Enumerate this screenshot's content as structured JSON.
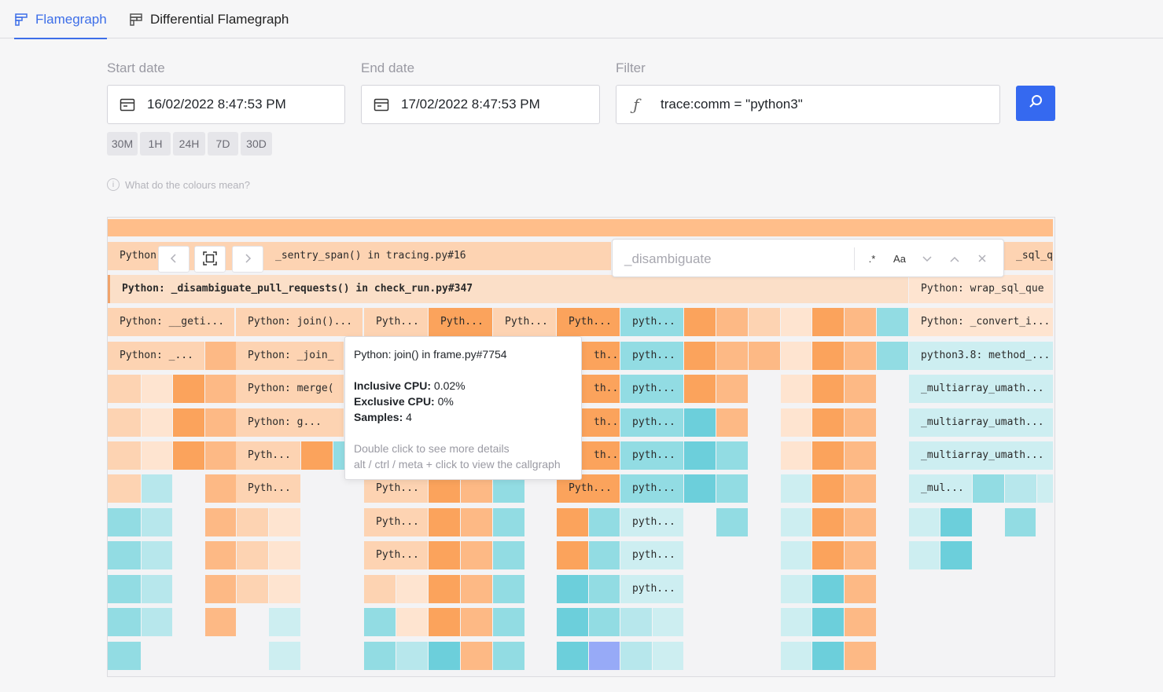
{
  "tabs": [
    {
      "label": "Flamegraph",
      "active": true,
      "icon": "flamegraph-icon"
    },
    {
      "label": "Differential Flamegraph",
      "active": false,
      "icon": "differential-flamegraph-icon"
    }
  ],
  "form": {
    "start_label": "Start date",
    "start_value": "16/02/2022 8:47:53 PM",
    "end_label": "End date",
    "end_value": "17/02/2022 8:47:53 PM",
    "filter_label": "Filter",
    "filter_value": "trace:comm = \"python3\"",
    "quick_ranges": [
      "30M",
      "1H",
      "24H",
      "7D",
      "30D"
    ],
    "help_text": "What do the colours mean?"
  },
  "flamegraph": {
    "search_placeholder": "_disambiguate",
    "search_regex_label": ".*",
    "search_case_label": "Aa",
    "colors": {
      "root": "#ffbe8a",
      "highlight": "#fbdfc8",
      "o1": "#fdd3b2",
      "o2": "#fdb985",
      "o3": "#fba35c",
      "o4": "#fee4d0",
      "b1": "#b7e7ec",
      "b2": "#92dce3",
      "b3": "#6ccfdb",
      "b4": "#cdeef1",
      "purple": "#97aaf7"
    },
    "labels": {
      "r1a": "Python: ",
      "r1b": "_sentry_span() in tracing.py#16",
      "r1c": "_sql_que",
      "r2a": "Python: _disambiguate_pull_requests() in check_run.py#347",
      "r2b": "Python: wrap_sql_que",
      "r3a": "Python: __geti...",
      "r3b": "Python: join()...",
      "r3c": "Pyth...",
      "r3d": "Pyth...",
      "r3e": "Pyth...",
      "r3f": "Pyth...",
      "r3g": "pyth...",
      "r3h": "Python: _convert_i...",
      "r4a": "Python: _...",
      "r4b": "Python: _join_",
      "r4c": "th...",
      "r4d": "pyth...",
      "r4e": "python3.8: method_...",
      "r5a": "Python: merge(",
      "r5b": "th...",
      "r5c": "pyth...",
      "r5d": "_multiarray_umath...",
      "r6a": "Python: g...",
      "r6b": "th...",
      "r6c": "pyth...",
      "r6d": "_multiarray_umath...",
      "r7a": "Pyth...",
      "r7b": "th...",
      "r7c": "pyth...",
      "r7d": "_multiarray_umath...",
      "r8a": "Pyth...",
      "r8b": "Pyth...",
      "r8c": "Pyth...",
      "r8d": "pyth...",
      "r8e": "_mul...",
      "r9a": "Pyth...",
      "r9b": "pyth...",
      "r10a": "Pyth...",
      "r10b": "pyth...",
      "r11a": "pyth..."
    }
  },
  "tooltip": {
    "title": "Python: join() in frame.py#7754",
    "inclusive_label": "Inclusive CPU:",
    "inclusive_value": "0.02%",
    "exclusive_label": "Exclusive CPU:",
    "exclusive_value": "0%",
    "samples_label": "Samples:",
    "samples_value": "4",
    "hint1": "Double click to see more details",
    "hint2": "alt / ctrl / meta + click to view the callgraph"
  }
}
